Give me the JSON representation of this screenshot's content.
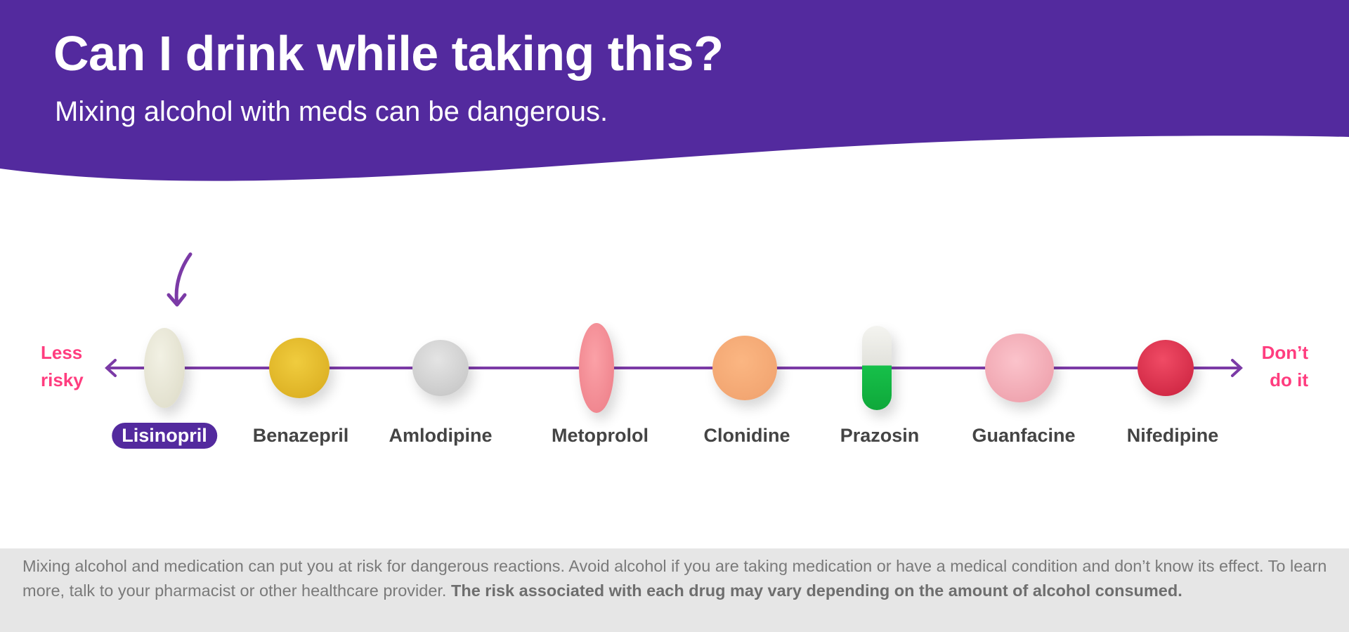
{
  "header": {
    "title": "Can I drink while taking this?",
    "subtitle": "Mixing alcohol with meds can be dangerous.",
    "color": "#532a9e"
  },
  "scale": {
    "left_label_1": "Less",
    "left_label_2": "risky",
    "right_label_1": "Don’t",
    "right_label_2": "do it",
    "axis_color": "#7b3aa6",
    "label_color": "#ff3d7f"
  },
  "drugs": [
    {
      "name": "Lisinopril",
      "selected": true,
      "pill": "oval tablet, cream"
    },
    {
      "name": "Benazepril",
      "pill": "round tablet, yellow"
    },
    {
      "name": "Amlodipine",
      "pill": "round tablet, light gray"
    },
    {
      "name": "Metoprolol",
      "pill": "oval tablet, pink"
    },
    {
      "name": "Clonidine",
      "pill": "round tablet, peach"
    },
    {
      "name": "Prazosin",
      "pill": "capsule, white/green"
    },
    {
      "name": "Guanfacine",
      "pill": "round tablet, light pink"
    },
    {
      "name": "Nifedipine",
      "pill": "round tablet, red"
    }
  ],
  "footer": {
    "text": "Mixing alcohol and medication can put you at risk for dangerous reactions. Avoid alcohol if you are taking medication or have a medical condition and don’t know its effect. To learn more, talk to your pharmacist or other healthcare provider. ",
    "bold": "The risk associated with each drug may vary depending on the amount of alcohol consumed."
  }
}
